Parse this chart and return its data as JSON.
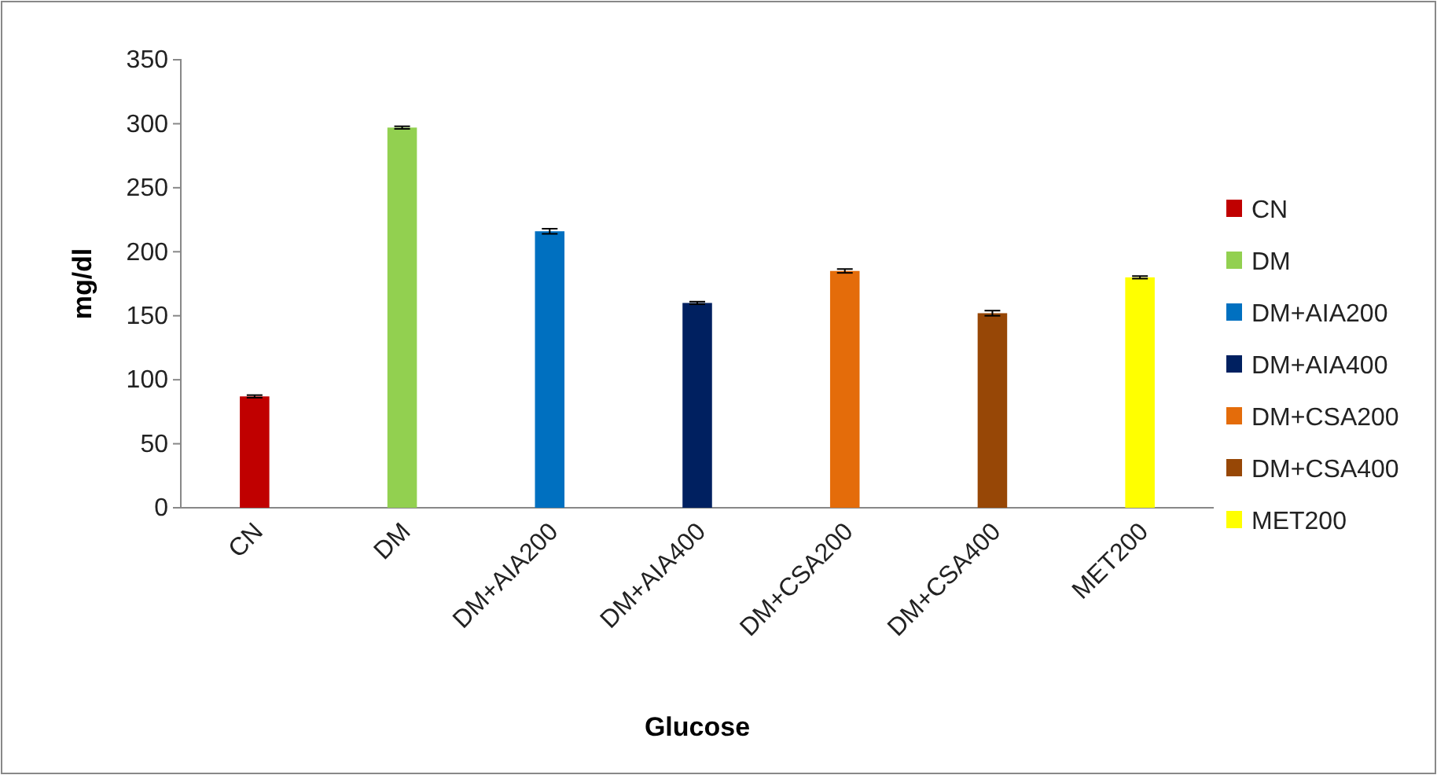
{
  "chart_data": {
    "type": "bar",
    "xlabel": "Glucose",
    "ylabel": "mg/dl",
    "categories": [
      "CN",
      "DM",
      "DM+AIA200",
      "DM+AIA400",
      "DM+CSA200",
      "DM+CSA400",
      "MET200"
    ],
    "series": [
      {
        "name": "CN",
        "color": "#c00000",
        "values": [
          87,
          null,
          null,
          null,
          null,
          null,
          null
        ],
        "errors": [
          1,
          null,
          null,
          null,
          null,
          null,
          null
        ]
      },
      {
        "name": "DM",
        "color": "#92d050",
        "values": [
          null,
          297,
          null,
          null,
          null,
          null,
          null
        ],
        "errors": [
          null,
          1,
          null,
          null,
          null,
          null,
          null
        ]
      },
      {
        "name": "DM+AIA200",
        "color": "#0070c0",
        "values": [
          null,
          null,
          216,
          null,
          null,
          null,
          null
        ],
        "errors": [
          null,
          null,
          2,
          null,
          null,
          null,
          null
        ]
      },
      {
        "name": "DM+AIA400",
        "color": "#002060",
        "values": [
          null,
          null,
          null,
          160,
          null,
          null,
          null
        ],
        "errors": [
          null,
          null,
          null,
          1,
          null,
          null,
          null
        ]
      },
      {
        "name": "DM+CSA200",
        "color": "#e46c0a",
        "values": [
          null,
          null,
          null,
          null,
          185,
          null,
          null
        ],
        "errors": [
          null,
          null,
          null,
          null,
          1.5,
          null,
          null
        ]
      },
      {
        "name": "DM+CSA400",
        "color": "#974706",
        "values": [
          null,
          null,
          null,
          null,
          null,
          152,
          null
        ],
        "errors": [
          null,
          null,
          null,
          null,
          null,
          2,
          null
        ]
      },
      {
        "name": "MET200",
        "color": "#ffff00",
        "values": [
          null,
          null,
          null,
          null,
          null,
          null,
          180
        ],
        "errors": [
          null,
          null,
          null,
          null,
          null,
          null,
          1
        ]
      }
    ],
    "ylim": [
      0,
      350
    ],
    "yticks": [
      0,
      50,
      100,
      150,
      200,
      250,
      300,
      350
    ],
    "grid": false,
    "legend": "right"
  }
}
